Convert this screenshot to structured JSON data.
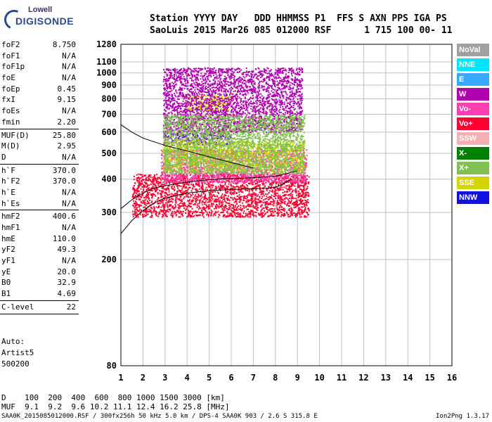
{
  "logo": {
    "line1": "Lowell",
    "line2": "DIGISONDE"
  },
  "header": {
    "line1": "Station YYYY DAY   DDD HHMMSS P1  FFS S AXN PPS IGA PS",
    "line2": "SaoLuis 2015 Mar26 085 012000 RSF      1 715 100 00- 11"
  },
  "params_groups": [
    [
      [
        "foF2",
        "8.750"
      ],
      [
        "foF1",
        "N/A"
      ],
      [
        "foF1p",
        "N/A"
      ],
      [
        "foE",
        "N/A"
      ],
      [
        "foEp",
        "0.45"
      ],
      [
        "fxI",
        "9.15"
      ],
      [
        "foEs",
        "N/A"
      ],
      [
        "fmin",
        "2.20"
      ]
    ],
    [
      [
        "MUF(D)",
        "25.80"
      ],
      [
        "M(D)",
        "2.95"
      ],
      [
        "D",
        "N/A"
      ]
    ],
    [
      [
        "h`F",
        "370.0"
      ],
      [
        "h`F2",
        "370.0"
      ],
      [
        "h`E",
        "N/A"
      ],
      [
        "h`Es",
        "N/A"
      ]
    ],
    [
      [
        "hmF2",
        "400.6"
      ],
      [
        "hmF1",
        "N/A"
      ],
      [
        "hmE",
        "110.0"
      ],
      [
        "yF2",
        "49.3"
      ],
      [
        "yF1",
        "N/A"
      ],
      [
        "yE",
        "20.0"
      ],
      [
        "B0",
        "32.9"
      ],
      [
        "B1",
        "4.69"
      ]
    ],
    [
      [
        "C-level",
        "22"
      ]
    ]
  ],
  "auto": {
    "line1": "Auto:",
    "line2": "Artist5",
    "line3": "500200"
  },
  "legend": [
    {
      "label": "NoVal",
      "color": "#a0a0a0"
    },
    {
      "label": "NNE",
      "color": "#00e5ff"
    },
    {
      "label": "E",
      "color": "#3aa8ff"
    },
    {
      "label": "W",
      "color": "#b000b0"
    },
    {
      "label": "Vo-",
      "color": "#ff3fb0"
    },
    {
      "label": "Vo+",
      "color": "#ff0030"
    },
    {
      "label": "SSW",
      "color": "#f4b0b0"
    },
    {
      "label": "X-",
      "color": "#008000"
    },
    {
      "label": "X+",
      "color": "#80c050"
    },
    {
      "label": "SSE",
      "color": "#d4d400"
    },
    {
      "label": "NNW",
      "color": "#1010e0"
    }
  ],
  "dmuf": {
    "d_line": "D    100  200  400  600  800 1000 1500 3000 [km]",
    "muf_line": "MUF  9.1  9.2  9.6 10.2 11.1 12.4 16.2 25.8 [MHz]"
  },
  "footer": {
    "left": "SAA0K_2015085012000.RSF / 300fx256h 50 kHz 5.0 km / DPS-4 SAA0K 903 / 2.6 S 315.8 E",
    "right": "Ion2Png 1.3.17"
  },
  "chart_data": {
    "type": "scatter",
    "title": "",
    "xlabel": "",
    "ylabel": "",
    "xlim": [
      1,
      16
    ],
    "ylim": [
      80,
      1280
    ],
    "yscale": "log",
    "grid": true,
    "x_ticks": [
      "1",
      "2",
      "3",
      "4",
      "5",
      "6",
      "7",
      "8",
      "9",
      "10",
      "11",
      "12",
      "13",
      "14",
      "15",
      "16"
    ],
    "y_ticks": [
      "80",
      "200",
      "300",
      "400",
      "500",
      "600",
      "700",
      "800",
      "900",
      "1000",
      "1100",
      "1280"
    ],
    "echo_regions": [
      {
        "x_range": [
          1.5,
          9.5
        ],
        "y_range": [
          290,
          420
        ],
        "color": "#ff0030"
      },
      {
        "x_range": [
          2.8,
          9.4
        ],
        "y_range": [
          390,
          520
        ],
        "color": "#ff3fb0"
      },
      {
        "x_range": [
          2.9,
          6.0
        ],
        "y_range": [
          540,
          600
        ],
        "color": "#7010c0"
      },
      {
        "x_range": [
          2.9,
          9.3
        ],
        "y_range": [
          430,
          560
        ],
        "color": "#d4d400"
      },
      {
        "x_range": [
          4.0,
          5.9
        ],
        "y_range": [
          720,
          830
        ],
        "color": "#d4d400"
      },
      {
        "x_range": [
          2.9,
          9.2
        ],
        "y_range": [
          600,
          1050
        ],
        "color": "#b000b0"
      },
      {
        "x_range": [
          2.9,
          9.3
        ],
        "y_range": [
          420,
          700
        ],
        "color": "#80c050"
      }
    ],
    "profile_curves": [
      {
        "name": "",
        "x": [
          1.0,
          1.5,
          2.0,
          2.5,
          3.0,
          4.0,
          5.0,
          6.0,
          7.0,
          8.0,
          8.75
        ],
        "y": [
          250,
          280,
          305,
          325,
          340,
          355,
          362,
          366,
          368,
          372,
          400
        ]
      },
      {
        "name": "",
        "x": [
          1.0,
          1.5,
          2.0,
          2.5,
          3.0,
          4.0,
          5.0,
          6.0,
          7.0,
          8.0,
          9.0
        ],
        "y": [
          310,
          335,
          355,
          370,
          378,
          390,
          398,
          402,
          405,
          410,
          430
        ]
      },
      {
        "name": "",
        "x": [
          1.0,
          1.5,
          2.0,
          3.0,
          4.0,
          5.0,
          6.0,
          7.0
        ],
        "y": [
          640,
          600,
          570,
          535,
          510,
          485,
          462,
          440
        ]
      }
    ]
  }
}
